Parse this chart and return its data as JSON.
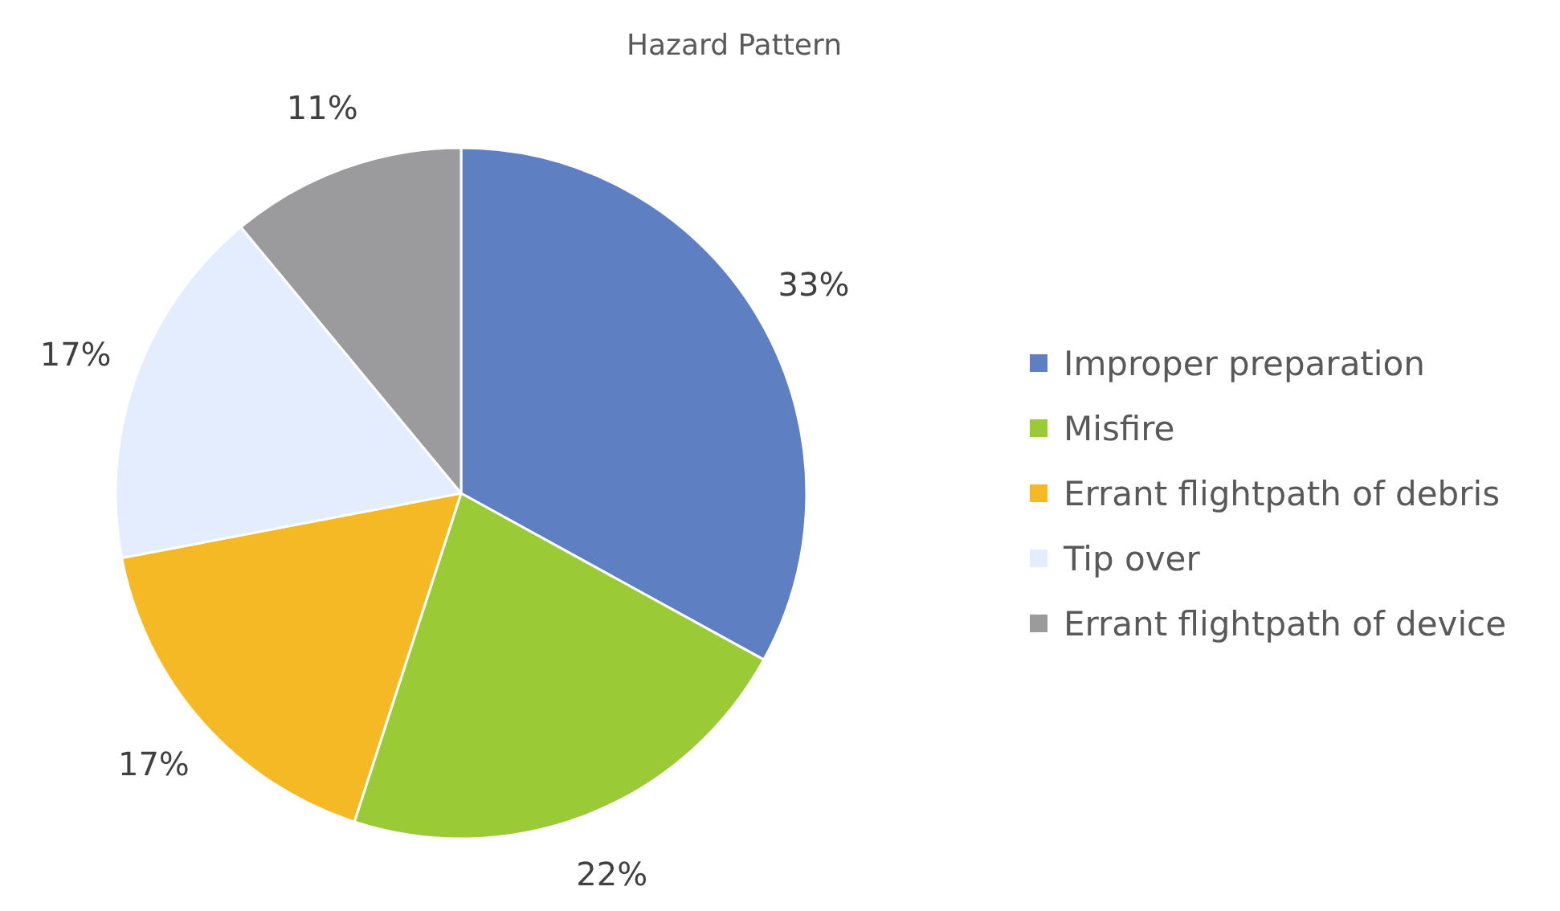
{
  "chart_data": {
    "type": "pie",
    "title": "Hazard Pattern",
    "categories": [
      "Improper preparation",
      "Misfire",
      "Errant flightpath of debris",
      "Tip over",
      "Errant flightpath of device"
    ],
    "values": [
      33,
      22,
      17,
      17,
      11
    ],
    "colors": [
      "#5e80c3",
      "#9acb37",
      "#f5b925",
      "#e4edfd",
      "#9b9b9d"
    ],
    "value_labels": [
      "33%",
      "22%",
      "17%",
      "17%",
      "11%"
    ],
    "legend": "right"
  }
}
